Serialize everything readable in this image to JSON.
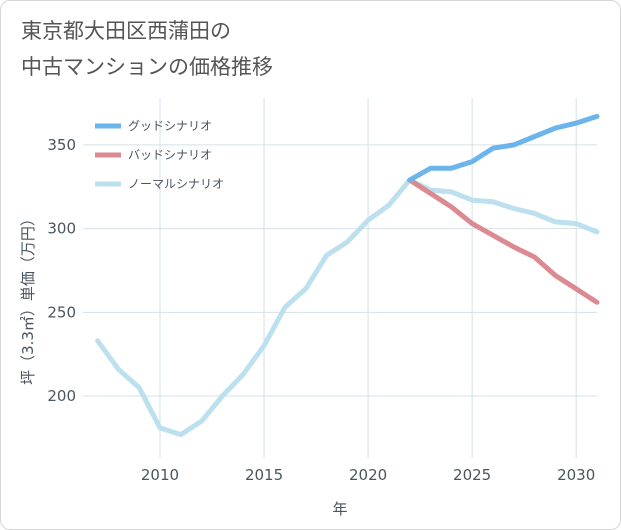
{
  "title_lines": [
    "東京都大田区西蒲田の",
    "中古マンションの価格推移"
  ],
  "chart_data": {
    "type": "line",
    "xlabel": "年",
    "ylabel": "坪（3.3㎡）単価（万円）",
    "xlim": [
      2006.3,
      2031
    ],
    "ylim": [
      163,
      378
    ],
    "xticks": [
      2010,
      2015,
      2020,
      2025,
      2030
    ],
    "yticks": [
      200,
      250,
      300,
      350
    ],
    "grid": true,
    "legend_position": "top-left",
    "series": [
      {
        "name": "グッドシナリオ",
        "color": "#6cb4ec",
        "x": [
          2022,
          2023,
          2024,
          2025,
          2026,
          2027,
          2028,
          2029,
          2030,
          2031
        ],
        "y": [
          329,
          336,
          336,
          340,
          348,
          350,
          355,
          360,
          363,
          367
        ]
      },
      {
        "name": "バッドシナリオ",
        "color": "#dc8a92",
        "x": [
          2022,
          2023,
          2024,
          2025,
          2026,
          2027,
          2028,
          2029,
          2030,
          2031
        ],
        "y": [
          329,
          321,
          313,
          303,
          296,
          289,
          283,
          272,
          264,
          256
        ]
      },
      {
        "name": "ノーマルシナリオ",
        "color": "#bde0ee",
        "x": [
          2007,
          2008,
          2009,
          2010,
          2011,
          2012,
          2013,
          2014,
          2015,
          2016,
          2017,
          2018,
          2019,
          2020,
          2021,
          2022,
          2023,
          2024,
          2025,
          2026,
          2027,
          2028,
          2029,
          2030,
          2031
        ],
        "y": [
          233,
          216,
          205,
          181,
          177,
          185,
          200,
          213,
          230,
          253,
          264,
          284,
          292,
          305,
          314,
          329,
          323,
          322,
          317,
          316,
          312,
          309,
          304,
          303,
          298
        ]
      }
    ]
  }
}
